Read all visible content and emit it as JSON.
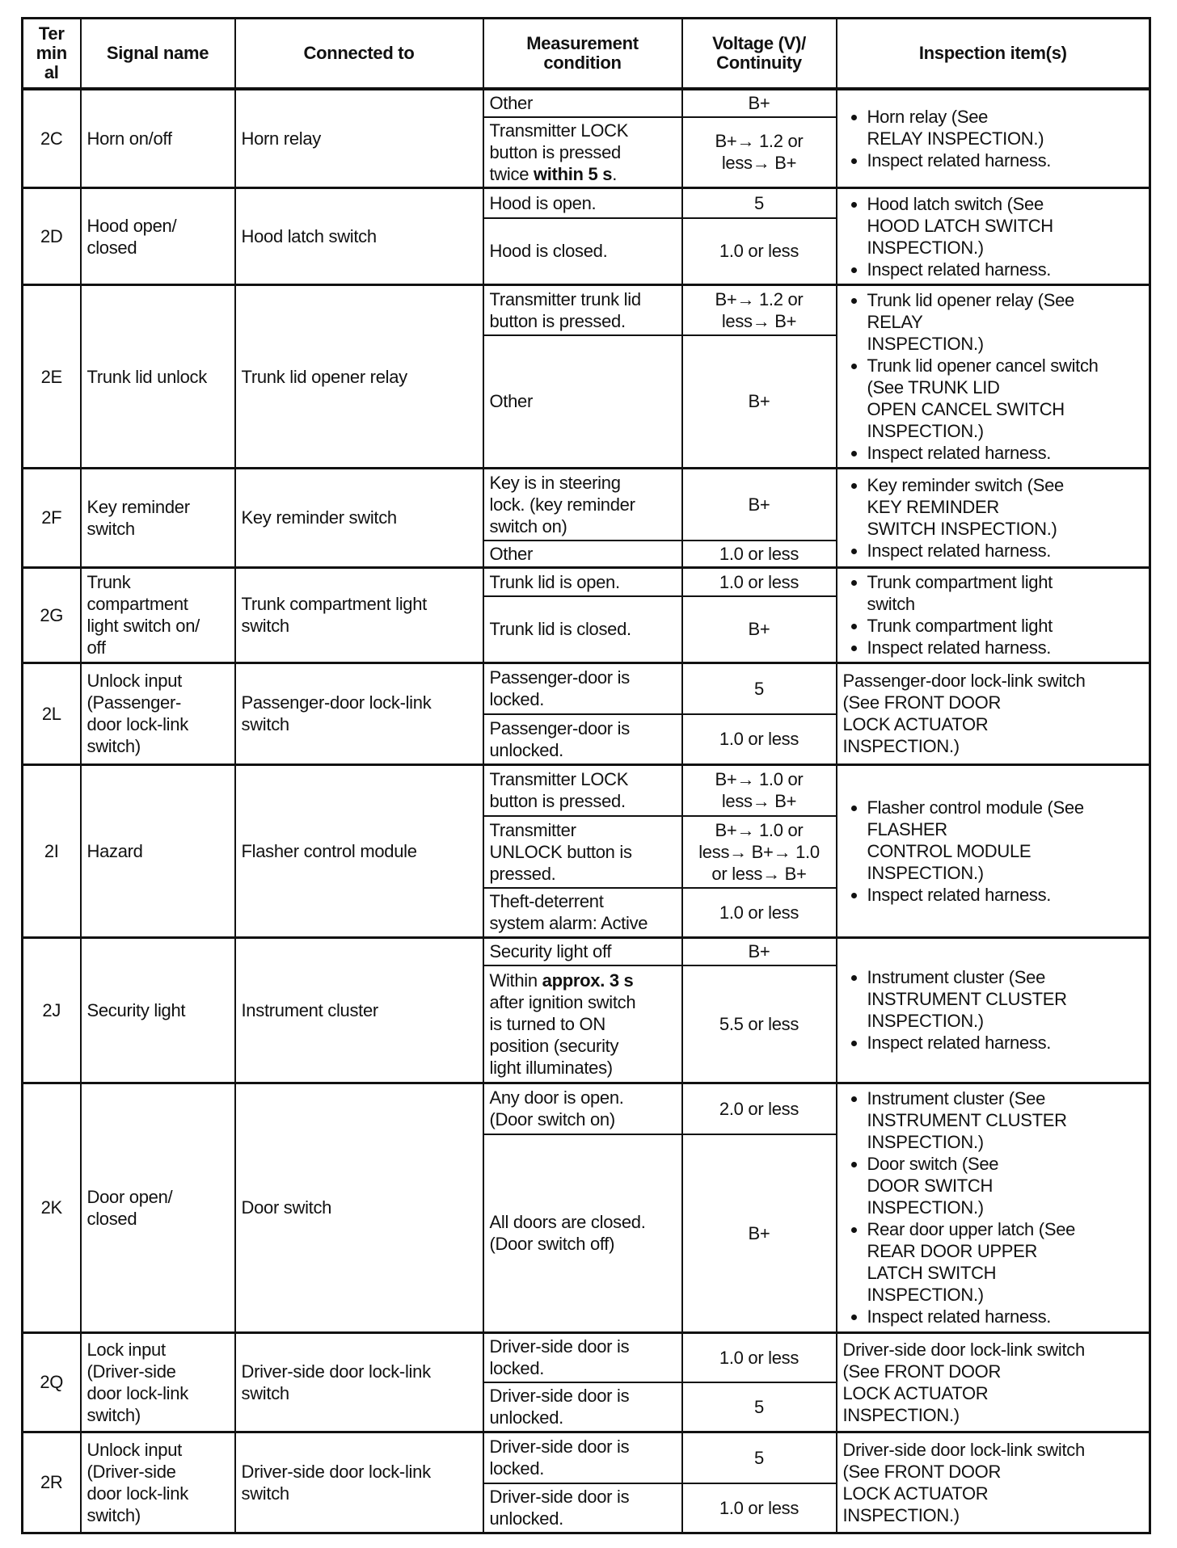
{
  "headers": [
    "Ter\nmin\nal",
    "Signal name",
    "Connected to",
    "Measurement\ncondition",
    "Voltage (V)/\nContinuity",
    "Inspection item(s)"
  ],
  "rows": [
    {
      "terminal": "2C",
      "signal": "Horn on/off",
      "connected": "Horn relay",
      "conditions": [
        {
          "condition": [
            {
              "t": "Other"
            }
          ],
          "value": "B+"
        },
        {
          "condition": [
            {
              "t": "Transmitter LOCK\nbutton is pressed\ntwice "
            },
            {
              "t": "within 5 s",
              "b": true
            },
            {
              "t": "."
            }
          ],
          "value": "B+→ 1.2 or\nless→ B+"
        }
      ],
      "inspection": {
        "bullets": [
          "Horn relay (See\nRELAY INSPECTION.)",
          "Inspect related harness."
        ]
      }
    },
    {
      "terminal": "2D",
      "signal": "Hood open/\nclosed",
      "connected": "Hood latch switch",
      "conditions": [
        {
          "condition": [
            {
              "t": "Hood is open."
            }
          ],
          "value": "5"
        },
        {
          "condition": [
            {
              "t": "Hood is closed."
            }
          ],
          "value": "1.0 or less"
        }
      ],
      "inspection": {
        "bullets": [
          "Hood latch switch (See\nHOOD LATCH SWITCH\nINSPECTION.)",
          "Inspect related harness."
        ]
      }
    },
    {
      "terminal": "2E",
      "signal": "Trunk lid unlock",
      "connected": "Trunk lid opener relay",
      "conditions": [
        {
          "condition": [
            {
              "t": "Transmitter trunk lid\nbutton is pressed."
            }
          ],
          "value": "B+→ 1.2 or\nless→ B+"
        },
        {
          "condition": [
            {
              "t": "Other"
            }
          ],
          "value": "B+"
        }
      ],
      "inspection": {
        "bullets": [
          "Trunk lid opener relay (See\nRELAY\nINSPECTION.)",
          "Trunk lid opener cancel switch\n(See TRUNK LID\nOPEN CANCEL SWITCH\nINSPECTION.)",
          "Inspect related harness."
        ]
      }
    },
    {
      "terminal": "2F",
      "signal": "Key reminder\nswitch",
      "connected": "Key reminder switch",
      "conditions": [
        {
          "condition": [
            {
              "t": "Key is in steering\nlock. (key reminder\nswitch on)"
            }
          ],
          "value": "B+"
        },
        {
          "condition": [
            {
              "t": "Other"
            }
          ],
          "value": "1.0 or less"
        }
      ],
      "inspection": {
        "bullets": [
          "Key reminder switch (See\nKEY REMINDER\nSWITCH INSPECTION.)",
          "Inspect related harness."
        ]
      }
    },
    {
      "terminal": "2G",
      "signal": "Trunk\ncompartment\nlight switch on/\noff",
      "connected": "Trunk compartment light\nswitch",
      "conditions": [
        {
          "condition": [
            {
              "t": "Trunk lid is open."
            }
          ],
          "value": "1.0 or less"
        },
        {
          "condition": [
            {
              "t": "Trunk lid is closed."
            }
          ],
          "value": "B+"
        }
      ],
      "inspection": {
        "bullets": [
          "Trunk compartment light\nswitch",
          "Trunk compartment light",
          "Inspect related harness."
        ]
      }
    },
    {
      "terminal": "2L",
      "signal": "Unlock input\n(Passenger-\ndoor lock-link\nswitch)",
      "connected": "Passenger-door lock-link\nswitch",
      "conditions": [
        {
          "condition": [
            {
              "t": "Passenger-door is\nlocked."
            }
          ],
          "value": "5"
        },
        {
          "condition": [
            {
              "t": "Passenger-door is\nunlocked."
            }
          ],
          "value": "1.0 or less"
        }
      ],
      "inspection": {
        "text": "Passenger-door lock-link switch\n(See FRONT DOOR\nLOCK ACTUATOR\nINSPECTION.)"
      }
    },
    {
      "terminal": "2I",
      "signal": "Hazard",
      "connected": "Flasher control module",
      "conditions": [
        {
          "condition": [
            {
              "t": "Transmitter LOCK\nbutton is pressed."
            }
          ],
          "value": "B+→ 1.0 or\nless→ B+"
        },
        {
          "condition": [
            {
              "t": "Transmitter\nUNLOCK button is\npressed."
            }
          ],
          "value": "B+→ 1.0 or\nless→ B+→ 1.0\nor less→ B+"
        },
        {
          "condition": [
            {
              "t": "Theft-deterrent\nsystem alarm: Active"
            }
          ],
          "value": "1.0 or less"
        }
      ],
      "inspection": {
        "bullets": [
          "Flasher control module (See\nFLASHER\nCONTROL MODULE\nINSPECTION.)",
          "Inspect related harness."
        ]
      }
    },
    {
      "terminal": "2J",
      "signal": "Security light",
      "connected": "Instrument cluster",
      "conditions": [
        {
          "condition": [
            {
              "t": "Security light off"
            }
          ],
          "value": "B+"
        },
        {
          "condition": [
            {
              "t": "Within "
            },
            {
              "t": "approx. 3 s",
              "b": true
            },
            {
              "t": "\nafter ignition switch\nis turned to ON\nposition (security\nlight illuminates)"
            }
          ],
          "value": "5.5 or less"
        }
      ],
      "inspection": {
        "bullets": [
          "Instrument cluster (See\nINSTRUMENT CLUSTER\nINSPECTION.)",
          "Inspect related harness."
        ]
      }
    },
    {
      "terminal": "2K",
      "signal": "Door open/\nclosed",
      "connected": "Door switch",
      "conditions": [
        {
          "condition": [
            {
              "t": "Any door is open.\n (Door switch on)"
            }
          ],
          "value": "2.0 or less"
        },
        {
          "condition": [
            {
              "t": "All doors are closed.\n (Door switch off)"
            }
          ],
          "value": "B+"
        }
      ],
      "inspection": {
        "bullets": [
          "Instrument cluster (See\nINSTRUMENT CLUSTER\nINSPECTION.)",
          "Door switch (See\nDOOR SWITCH\nINSPECTION.)",
          "Rear door upper latch (See\nREAR DOOR UPPER\nLATCH SWITCH\nINSPECTION.)",
          "Inspect related harness."
        ]
      }
    },
    {
      "terminal": "2Q",
      "signal": "Lock input\n(Driver-side\ndoor lock-link\nswitch)",
      "connected": "Driver-side door lock-link\nswitch",
      "conditions": [
        {
          "condition": [
            {
              "t": "Driver-side door is\nlocked."
            }
          ],
          "value": "1.0 or less"
        },
        {
          "condition": [
            {
              "t": "Driver-side door is\nunlocked."
            }
          ],
          "value": "5"
        }
      ],
      "inspection": {
        "text": "Driver-side door lock-link switch\n(See FRONT DOOR\nLOCK ACTUATOR\nINSPECTION.)"
      }
    },
    {
      "terminal": "2R",
      "signal": "Unlock input\n(Driver-side\ndoor lock-link\nswitch)",
      "connected": "Driver-side door lock-link\nswitch",
      "conditions": [
        {
          "condition": [
            {
              "t": "Driver-side door is\nlocked."
            }
          ],
          "value": "5"
        },
        {
          "condition": [
            {
              "t": "Driver-side door is\nunlocked."
            }
          ],
          "value": "1.0 or less"
        }
      ],
      "inspection": {
        "text": "Driver-side door lock-link switch\n(See FRONT DOOR\nLOCK ACTUATOR\nINSPECTION.)"
      }
    }
  ]
}
